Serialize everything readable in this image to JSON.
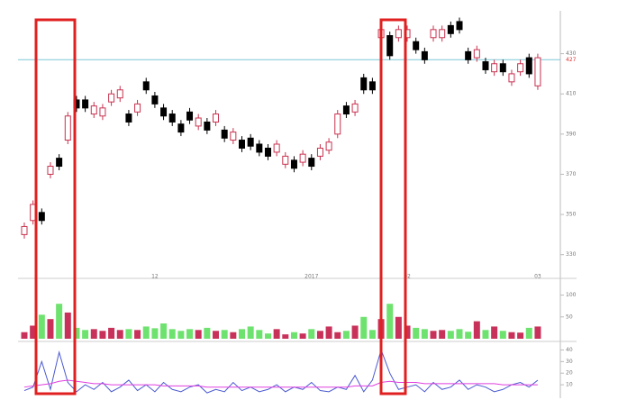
{
  "chart_data": [
    {
      "type": "candlestick",
      "categories": [
        null,
        null,
        null,
        null,
        null,
        null,
        null,
        null,
        null,
        null,
        null,
        null,
        null,
        null,
        null,
        "12",
        null,
        null,
        null,
        null,
        null,
        null,
        null,
        null,
        null,
        null,
        null,
        null,
        null,
        null,
        null,
        null,
        null,
        "2017",
        null,
        null,
        null,
        null,
        null,
        null,
        null,
        null,
        null,
        null,
        "02",
        null,
        null,
        null,
        null,
        null,
        null,
        null,
        null,
        null,
        null,
        null,
        null,
        null,
        null,
        "03"
      ],
      "open": [
        340,
        347,
        351,
        370,
        378,
        387,
        407,
        407,
        400,
        399,
        406,
        408,
        400,
        401,
        416,
        409,
        403,
        400,
        395,
        401,
        394,
        396,
        396,
        392,
        387,
        387,
        388,
        385,
        383,
        381,
        375,
        377,
        376,
        378,
        379,
        382,
        390,
        404,
        401,
        418,
        416,
        438,
        439,
        438,
        438,
        436,
        431,
        438,
        438,
        444,
        446,
        431,
        428,
        426,
        421,
        425,
        416,
        421,
        428,
        414
      ],
      "high": [
        346,
        357,
        353,
        376,
        380,
        401,
        409,
        409,
        406,
        405,
        412,
        414,
        402,
        407,
        418,
        411,
        405,
        402,
        397,
        403,
        400,
        398,
        402,
        394,
        393,
        389,
        390,
        387,
        385,
        387,
        381,
        379,
        382,
        380,
        385,
        388,
        402,
        406,
        407,
        420,
        418,
        444,
        441,
        444,
        444,
        438,
        433,
        444,
        444,
        446,
        448,
        433,
        434,
        428,
        427,
        427,
        422,
        427,
        430,
        430
      ],
      "low": [
        338,
        345,
        345,
        368,
        372,
        385,
        401,
        401,
        398,
        397,
        404,
        406,
        394,
        399,
        410,
        403,
        397,
        394,
        389,
        395,
        392,
        390,
        394,
        386,
        385,
        381,
        382,
        379,
        377,
        379,
        373,
        371,
        374,
        372,
        377,
        380,
        388,
        398,
        399,
        410,
        410,
        436,
        427,
        436,
        436,
        430,
        425,
        436,
        436,
        438,
        440,
        425,
        426,
        420,
        419,
        419,
        414,
        419,
        418,
        412
      ],
      "close": [
        344,
        355,
        347,
        374,
        374,
        399,
        403,
        403,
        404,
        403,
        410,
        412,
        396,
        405,
        412,
        405,
        399,
        396,
        391,
        397,
        398,
        392,
        400,
        388,
        391,
        383,
        384,
        381,
        379,
        385,
        379,
        373,
        380,
        374,
        383,
        386,
        400,
        400,
        405,
        412,
        412,
        442,
        429,
        442,
        442,
        432,
        427,
        442,
        442,
        440,
        442,
        427,
        432,
        422,
        425,
        421,
        420,
        425,
        420,
        428
      ],
      "up_color": "#c8324f",
      "down_color": "#000000",
      "ref_line": 427,
      "ref_color": "#7cc8d8",
      "ylim": [
        320,
        450
      ],
      "yticks": [
        330,
        350,
        370,
        390,
        410,
        430
      ]
    },
    {
      "type": "bar",
      "values": [
        15,
        30,
        55,
        45,
        80,
        60,
        25,
        20,
        22,
        18,
        25,
        20,
        22,
        20,
        28,
        24,
        35,
        22,
        18,
        22,
        20,
        25,
        18,
        20,
        15,
        22,
        28,
        20,
        12,
        22,
        10,
        15,
        12,
        22,
        18,
        28,
        15,
        18,
        30,
        50,
        20,
        45,
        80,
        50,
        30,
        25,
        22,
        18,
        20,
        18,
        22,
        16,
        40,
        20,
        28,
        18,
        15,
        14,
        25,
        28
      ],
      "up_color": "#c8325a",
      "down_color": "#6ee26e",
      "ylim": [
        0,
        130
      ],
      "yticks": [
        50,
        100
      ]
    },
    {
      "type": "line",
      "series": [
        {
          "color": "#4a5ad0",
          "values": [
            5,
            8,
            30,
            6,
            38,
            12,
            4,
            10,
            6,
            12,
            4,
            8,
            14,
            5,
            10,
            4,
            12,
            6,
            4,
            8,
            10,
            3,
            6,
            4,
            12,
            5,
            8,
            4,
            6,
            10,
            4,
            8,
            6,
            12,
            5,
            4,
            8,
            6,
            18,
            4,
            14,
            40,
            20,
            6,
            8,
            10,
            4,
            12,
            6,
            8,
            14,
            6,
            10,
            8,
            4,
            6,
            10,
            12,
            8,
            14
          ]
        },
        {
          "color": "#e040e0",
          "values": [
            8,
            9,
            10,
            11,
            13,
            14,
            13,
            12,
            11,
            11,
            10,
            10,
            10,
            10,
            10,
            10,
            9,
            9,
            9,
            9,
            9,
            8,
            8,
            8,
            8,
            8,
            8,
            8,
            8,
            8,
            8,
            8,
            8,
            8,
            8,
            8,
            8,
            8,
            9,
            9,
            9,
            12,
            13,
            12,
            12,
            12,
            11,
            11,
            11,
            11,
            11,
            11,
            11,
            11,
            11,
            10,
            10,
            10,
            10,
            10
          ]
        }
      ],
      "ylim": [
        0,
        45
      ],
      "yticks": [
        10,
        20,
        30,
        40
      ]
    }
  ]
}
